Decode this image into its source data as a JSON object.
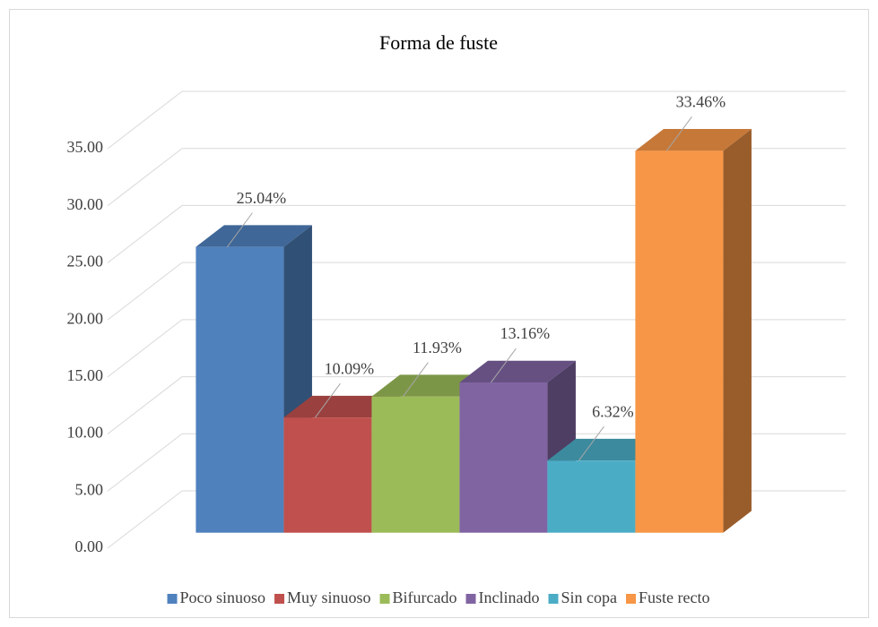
{
  "chart_data": {
    "type": "bar3d",
    "title": "Forma de fuste",
    "categories": [
      "Poco sinuoso",
      "Muy sinuoso",
      "Bifurcado",
      "Inclinado",
      "Sin copa",
      "Fuste recto"
    ],
    "values": [
      25.04,
      10.09,
      11.93,
      13.16,
      6.32,
      33.46
    ],
    "value_labels": [
      "25.04%",
      "10.09%",
      "11.93%",
      "13.16%",
      "6.32%",
      "33.46%"
    ],
    "colors": [
      "#4f81bd",
      "#c0504d",
      "#9bbb59",
      "#8064a2",
      "#4bacc6",
      "#f79646"
    ],
    "ylim": [
      0,
      35
    ],
    "yticks": [
      {
        "value": 0,
        "label": "0.00"
      },
      {
        "value": 5,
        "label": "5.00"
      },
      {
        "value": 10,
        "label": "10.00"
      },
      {
        "value": 15,
        "label": "15.00"
      },
      {
        "value": 20,
        "label": "20.00"
      },
      {
        "value": 25,
        "label": "25.00"
      },
      {
        "value": 30,
        "label": "30.00"
      },
      {
        "value": 35,
        "label": "35.00"
      }
    ],
    "grid": true,
    "legend": "bottom"
  }
}
